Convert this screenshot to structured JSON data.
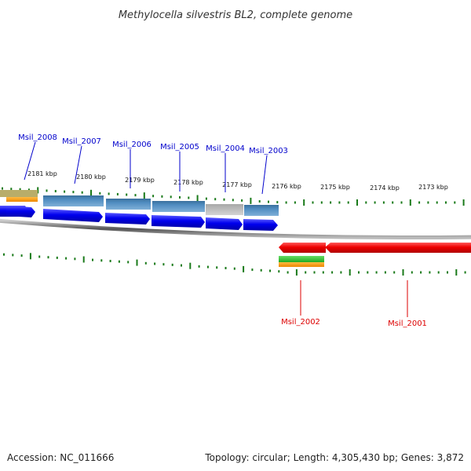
{
  "title": "Methylocella silvestris BL2, complete genome",
  "footer": {
    "accession": "Accession: NC_011666",
    "summary": "Topology: circular; Length: 4,305,430 bp; Genes: 3,872"
  },
  "colors": {
    "forward_gene": "#0000ee",
    "reverse_gene": "#ee0000",
    "forward_label": "#0000cc",
    "reverse_label": "#dd0000",
    "feature_steelblue": "#4a86b8",
    "feature_grey": "#bdbdbd",
    "feature_green": "#33bb33",
    "feature_orange": "#ff9900",
    "tick": "#1a7a1a",
    "backbone": "#777777"
  },
  "scale_labels": [
    "2181 kbp",
    "2180 kbp",
    "2179 kbp",
    "2178 kbp",
    "2177 kbp",
    "2176 kbp",
    "2175 kbp",
    "2174 kbp",
    "2173 kbp"
  ],
  "forward_genes": [
    "Msil_2008",
    "Msil_2007",
    "Msil_2006",
    "Msil_2005",
    "Msil_2004",
    "Msil_2003"
  ],
  "reverse_genes": [
    "Msil_2002",
    "Msil_2001"
  ]
}
